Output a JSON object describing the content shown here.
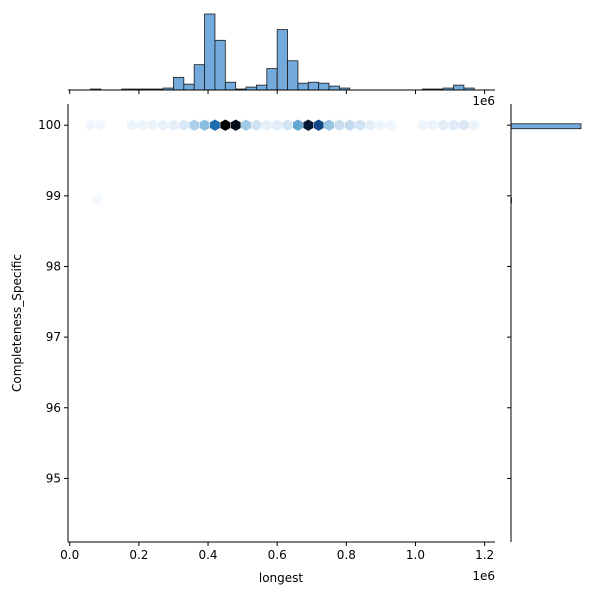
{
  "chart_data": {
    "type": "jointplot-hexbin",
    "x": {
      "label": "longest",
      "lim": [
        -5000,
        1230000
      ],
      "ticks": [
        0,
        200000,
        400000,
        600000,
        800000,
        1000000,
        1200000
      ],
      "tick_labels": [
        "0.0",
        "0.2",
        "0.4",
        "0.6",
        "0.8",
        "1.0",
        "1.2"
      ],
      "offset_label": "1e6"
    },
    "y": {
      "label": "Completeness_Specific",
      "lim": [
        94.1,
        100.3
      ],
      "ticks": [
        95,
        96,
        97,
        98,
        99,
        100
      ],
      "tick_labels": [
        "95",
        "96",
        "97",
        "98",
        "99",
        "100"
      ]
    },
    "hexbin": {
      "colormap": [
        "#f7fbff",
        "#c6dbef",
        "#6baed6",
        "#2171b5",
        "#08306b",
        "#000000"
      ],
      "cells": [
        {
          "x": 60000,
          "y": 100,
          "density": 0.03
        },
        {
          "x": 90000,
          "y": 100,
          "density": 0.03
        },
        {
          "x": 180000,
          "y": 100,
          "density": 0.04
        },
        {
          "x": 210000,
          "y": 100,
          "density": 0.04
        },
        {
          "x": 240000,
          "y": 100,
          "density": 0.05
        },
        {
          "x": 270000,
          "y": 100,
          "density": 0.06
        },
        {
          "x": 300000,
          "y": 100,
          "density": 0.08
        },
        {
          "x": 330000,
          "y": 100,
          "density": 0.12
        },
        {
          "x": 360000,
          "y": 100,
          "density": 0.25
        },
        {
          "x": 390000,
          "y": 100,
          "density": 0.33
        },
        {
          "x": 420000,
          "y": 100,
          "density": 0.62
        },
        {
          "x": 450000,
          "y": 100,
          "density": 1.0
        },
        {
          "x": 480000,
          "y": 100,
          "density": 0.95
        },
        {
          "x": 510000,
          "y": 100,
          "density": 0.28
        },
        {
          "x": 540000,
          "y": 100,
          "density": 0.15
        },
        {
          "x": 570000,
          "y": 100,
          "density": 0.07
        },
        {
          "x": 600000,
          "y": 100,
          "density": 0.09
        },
        {
          "x": 630000,
          "y": 100,
          "density": 0.14
        },
        {
          "x": 660000,
          "y": 100,
          "density": 0.42
        },
        {
          "x": 690000,
          "y": 100,
          "density": 0.9
        },
        {
          "x": 720000,
          "y": 100,
          "density": 0.72
        },
        {
          "x": 750000,
          "y": 100,
          "density": 0.3
        },
        {
          "x": 780000,
          "y": 100,
          "density": 0.18
        },
        {
          "x": 810000,
          "y": 100,
          "density": 0.2
        },
        {
          "x": 840000,
          "y": 100,
          "density": 0.15
        },
        {
          "x": 870000,
          "y": 100,
          "density": 0.08
        },
        {
          "x": 900000,
          "y": 100,
          "density": 0.04
        },
        {
          "x": 930000,
          "y": 100,
          "density": 0.03
        },
        {
          "x": 1020000,
          "y": 100,
          "density": 0.04
        },
        {
          "x": 1050000,
          "y": 100,
          "density": 0.05
        },
        {
          "x": 1080000,
          "y": 100,
          "density": 0.08
        },
        {
          "x": 1110000,
          "y": 100,
          "density": 0.1
        },
        {
          "x": 1140000,
          "y": 100,
          "density": 0.12
        },
        {
          "x": 1170000,
          "y": 100,
          "density": 0.05
        },
        {
          "x": 80000,
          "y": 98.95,
          "density": 0.02
        }
      ]
    },
    "marginal_x_histogram": {
      "bin_edges": [
        0,
        30000,
        60000,
        90000,
        120000,
        150000,
        180000,
        210000,
        240000,
        270000,
        300000,
        330000,
        360000,
        390000,
        420000,
        450000,
        480000,
        510000,
        540000,
        570000,
        600000,
        630000,
        660000,
        690000,
        720000,
        750000,
        780000,
        810000,
        840000,
        870000,
        900000,
        930000,
        960000,
        990000,
        1020000,
        1050000,
        1080000,
        1110000,
        1140000,
        1170000,
        1200000
      ],
      "counts": [
        0,
        0,
        1,
        0,
        0,
        1,
        1,
        1,
        1,
        2,
        13,
        6,
        26,
        78,
        51,
        8,
        1,
        3,
        5,
        22,
        62,
        30,
        7,
        8,
        7,
        4,
        2,
        0,
        0,
        0,
        0,
        0,
        0,
        0,
        1,
        1,
        2,
        5,
        2,
        0
      ]
    },
    "marginal_y_histogram": {
      "bins": [
        {
          "y_start": 99.95,
          "y_end": 100.02,
          "count": 360
        },
        {
          "y_start": 98.9,
          "y_end": 98.97,
          "count": 1
        }
      ]
    }
  }
}
